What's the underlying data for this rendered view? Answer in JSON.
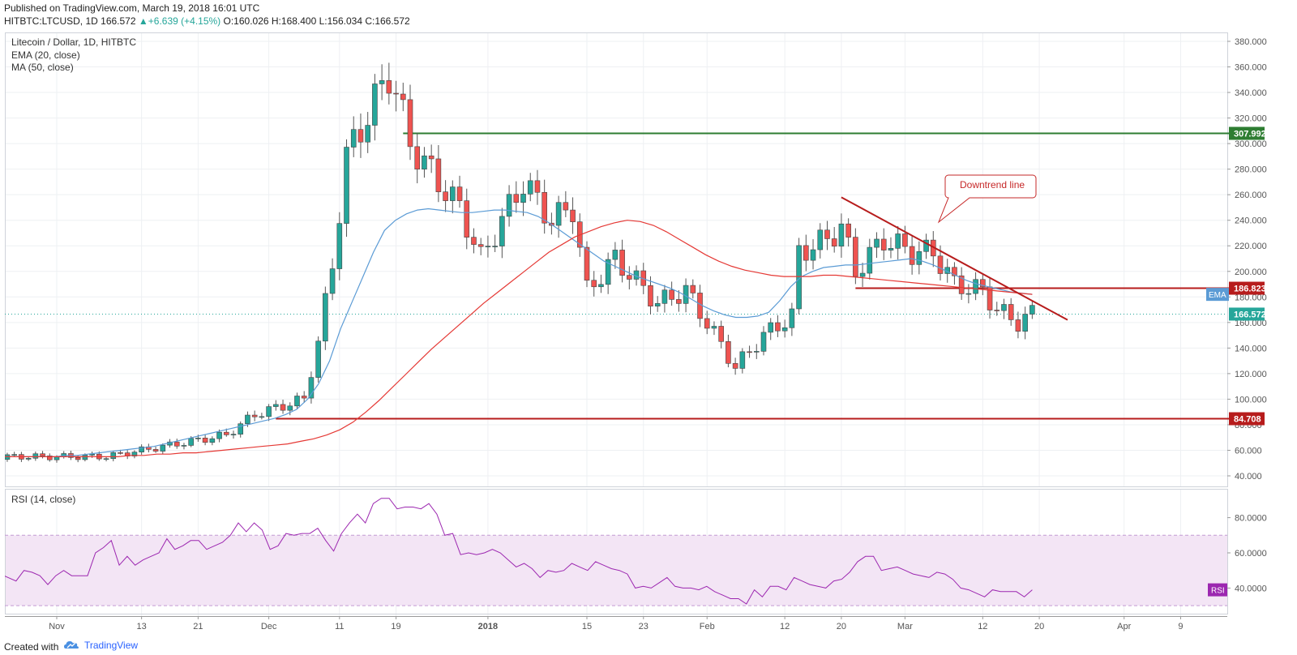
{
  "header": {
    "published": "Published on TradingView.com, March 19, 2018 16:01 UTC",
    "symbol_line": "HITBTC:LTCUSD, 1D",
    "last": "166.572",
    "change": "+6.639 (+4.15%)",
    "ohlc": "O:160.026 H:168.400 L:156.034 C:166.572"
  },
  "legend": {
    "title": "Litecoin / Dollar, 1D, HITBTC",
    "ema": "EMA (20, close)",
    "ma": "MA (50, close)",
    "rsi": "RSI (14, close)"
  },
  "footer": {
    "created_with": "Created with",
    "brand": "TradingView"
  },
  "colors": {
    "up": "#26a69a",
    "down": "#ef5350",
    "ema": "#5b9bd5",
    "ma": "#e53935",
    "resistance": "#2e7d32",
    "support": "#b71c1c",
    "rsi": "#9c27b0",
    "rsi_band": "#f3e5f5"
  },
  "chart_data": [
    {
      "type": "candlestick",
      "title": "Litecoin / Dollar, 1D, HITBTC",
      "ylim": [
        40,
        380
      ],
      "y_ticks": [
        "40.000",
        "60.000",
        "80.000",
        "100.000",
        "120.000",
        "140.000",
        "160.000",
        "180.000",
        "200.000",
        "220.000",
        "240.000",
        "260.000",
        "280.000",
        "300.000",
        "320.000",
        "340.000",
        "360.000",
        "380.000"
      ],
      "x_ticks": [
        "Nov",
        "13",
        "21",
        "Dec",
        "11",
        "19",
        "2018",
        "15",
        "23",
        "Feb",
        "12",
        "20",
        "Mar",
        "12",
        "20",
        "Apr",
        "9"
      ],
      "price_labels": [
        {
          "text": "307.992",
          "value": 307.992,
          "color": "#2e7d32"
        },
        {
          "text": "186.823",
          "value": 186.823,
          "color": "#b71c1c"
        },
        {
          "text": "166.572",
          "value": 166.572,
          "color": "#26a69a"
        },
        {
          "text": "84.708",
          "value": 84.708,
          "color": "#b71c1c"
        }
      ],
      "ema_tag": "EMA",
      "annotation": "Downtrend line",
      "horizontal_lines": [
        {
          "value": 307.992,
          "from": "2017-12-20",
          "color": "#2e7d32"
        },
        {
          "value": 186.823,
          "from": "2018-02-22",
          "color": "#b71c1c"
        },
        {
          "value": 84.708,
          "from": "2017-12-02",
          "color": "#b71c1c"
        }
      ],
      "trendline": {
        "x1": "2018-02-20",
        "y1": 258,
        "x2": "2018-03-24",
        "y2": 162
      },
      "series": [
        {
          "name": "EMA (20, close)",
          "values": [
            55,
            55,
            55,
            55,
            55,
            55,
            56,
            56,
            57,
            58,
            59,
            60,
            61,
            62,
            63,
            65,
            67,
            69,
            71,
            73,
            75,
            77,
            79,
            81,
            83,
            85,
            88,
            92,
            100,
            112,
            130,
            155,
            175,
            195,
            215,
            232,
            240,
            245,
            248,
            249,
            248,
            247,
            246,
            246,
            247,
            248,
            248,
            247,
            246,
            243,
            238,
            232,
            226,
            220,
            214,
            208,
            204,
            200,
            196,
            193,
            190,
            187,
            183,
            178,
            173,
            169,
            166,
            164,
            164,
            165,
            168,
            177,
            188,
            196,
            200,
            203,
            204,
            205,
            205,
            206,
            207,
            208,
            209,
            210,
            208,
            205,
            201,
            197,
            193,
            190,
            188,
            186,
            184,
            183,
            182
          ]
        },
        {
          "name": "MA (50, close)",
          "values": [
            55,
            55,
            55,
            55,
            55,
            55,
            55,
            55,
            55,
            55,
            56,
            56,
            57,
            57,
            58,
            58,
            59,
            60,
            61,
            62,
            63,
            64,
            65,
            67,
            69,
            72,
            76,
            82,
            90,
            99,
            109,
            119,
            129,
            139,
            148,
            157,
            166,
            175,
            183,
            191,
            199,
            207,
            215,
            221,
            227,
            231,
            235,
            238,
            240,
            239,
            236,
            231,
            225,
            219,
            213,
            208,
            204,
            201,
            199,
            197,
            196,
            196,
            196,
            197,
            197,
            196,
            195,
            194,
            193,
            192,
            191,
            190,
            189,
            188,
            187,
            186,
            185,
            184,
            183,
            182
          ]
        }
      ]
    },
    {
      "type": "line",
      "title": "RSI (14, close)",
      "ylim": [
        25,
        95
      ],
      "y_ticks": [
        "40.0000",
        "60.0000",
        "80.0000"
      ],
      "band": [
        30,
        70
      ],
      "last_label": "RSI",
      "series": [
        {
          "name": "RSI (14, close)",
          "values": [
            48,
            46,
            44,
            50,
            49,
            47,
            42,
            47,
            50,
            47,
            47,
            47,
            60,
            63,
            67,
            53,
            58,
            53,
            56,
            58,
            60,
            68,
            62,
            64,
            67,
            67,
            62,
            64,
            66,
            70,
            77,
            72,
            77,
            73,
            62,
            64,
            71,
            70,
            71,
            71,
            74,
            67,
            61,
            71,
            77,
            82,
            77,
            88,
            91,
            91,
            85,
            86,
            86,
            85,
            88,
            82,
            70,
            71,
            59,
            60,
            59,
            60,
            62,
            60,
            56,
            52,
            54,
            51,
            46,
            50,
            49,
            50,
            54,
            52,
            50,
            55,
            53,
            51,
            50,
            48,
            40,
            41,
            40,
            43,
            46,
            41,
            40,
            40,
            39,
            41,
            38,
            36,
            34,
            34,
            31,
            39,
            35,
            41,
            41,
            39,
            46,
            44,
            42,
            41,
            40,
            44,
            45,
            49,
            55,
            58,
            58,
            50,
            51,
            52,
            50,
            48,
            47,
            46,
            49,
            48,
            45,
            40,
            39,
            37,
            35,
            39,
            38,
            38,
            38,
            35,
            39
          ]
        }
      ]
    }
  ]
}
